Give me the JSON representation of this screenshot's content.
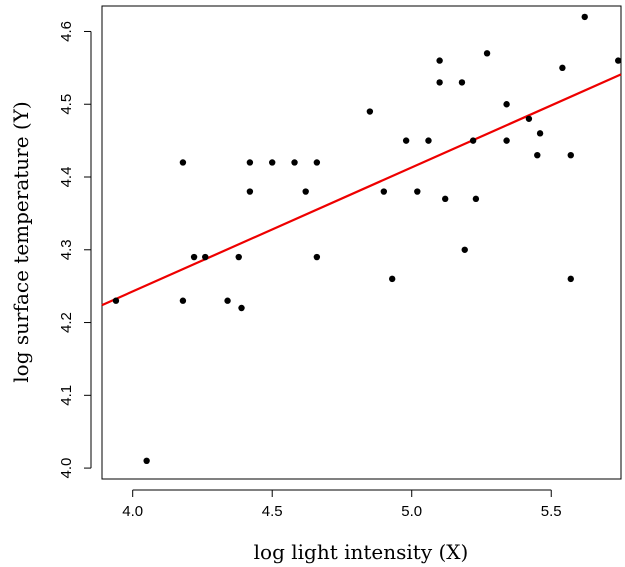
{
  "chart_data": {
    "type": "scatter",
    "title": "",
    "xlabel": "log light intensity (X)",
    "ylabel": "log surface temperature (Y)",
    "xlim": [
      3.89,
      5.75
    ],
    "ylim": [
      3.985,
      4.635
    ],
    "x_ticks": [
      4.0,
      4.5,
      5.0,
      5.5
    ],
    "x_tick_labels": [
      "4.0",
      "4.5",
      "5.0",
      "5.5"
    ],
    "y_ticks": [
      4.0,
      4.1,
      4.2,
      4.3,
      4.4,
      4.5,
      4.6
    ],
    "y_tick_labels": [
      "4.0",
      "4.1",
      "4.2",
      "4.3",
      "4.4",
      "4.5",
      "4.6"
    ],
    "grid": false,
    "legend": "none",
    "point_color": "#000000",
    "line_color": "#ee0000",
    "regression_line": {
      "x": [
        3.89,
        5.75
      ],
      "y": [
        4.224,
        4.541
      ]
    },
    "points": [
      {
        "x": 3.94,
        "y": 4.23
      },
      {
        "x": 4.05,
        "y": 4.01
      },
      {
        "x": 4.18,
        "y": 4.42
      },
      {
        "x": 4.18,
        "y": 4.23
      },
      {
        "x": 4.22,
        "y": 4.29
      },
      {
        "x": 4.26,
        "y": 4.29
      },
      {
        "x": 4.34,
        "y": 4.23
      },
      {
        "x": 4.38,
        "y": 4.29
      },
      {
        "x": 4.39,
        "y": 4.22
      },
      {
        "x": 4.42,
        "y": 4.42
      },
      {
        "x": 4.42,
        "y": 4.38
      },
      {
        "x": 4.5,
        "y": 4.42
      },
      {
        "x": 4.58,
        "y": 4.42
      },
      {
        "x": 4.62,
        "y": 4.38
      },
      {
        "x": 4.66,
        "y": 4.42
      },
      {
        "x": 4.66,
        "y": 4.29
      },
      {
        "x": 4.85,
        "y": 4.49
      },
      {
        "x": 4.9,
        "y": 4.38
      },
      {
        "x": 4.93,
        "y": 4.26
      },
      {
        "x": 4.98,
        "y": 4.45
      },
      {
        "x": 5.02,
        "y": 4.38
      },
      {
        "x": 5.06,
        "y": 4.45
      },
      {
        "x": 5.1,
        "y": 4.56
      },
      {
        "x": 5.1,
        "y": 4.53
      },
      {
        "x": 5.12,
        "y": 4.37
      },
      {
        "x": 5.18,
        "y": 4.53
      },
      {
        "x": 5.19,
        "y": 4.3
      },
      {
        "x": 5.22,
        "y": 4.45
      },
      {
        "x": 5.23,
        "y": 4.37
      },
      {
        "x": 5.27,
        "y": 4.57
      },
      {
        "x": 5.34,
        "y": 4.5
      },
      {
        "x": 5.34,
        "y": 4.45
      },
      {
        "x": 5.42,
        "y": 4.48
      },
      {
        "x": 5.45,
        "y": 4.43
      },
      {
        "x": 5.46,
        "y": 4.46
      },
      {
        "x": 5.54,
        "y": 4.55
      },
      {
        "x": 5.57,
        "y": 4.43
      },
      {
        "x": 5.57,
        "y": 4.26
      },
      {
        "x": 5.62,
        "y": 4.62
      },
      {
        "x": 5.74,
        "y": 4.56
      }
    ]
  }
}
